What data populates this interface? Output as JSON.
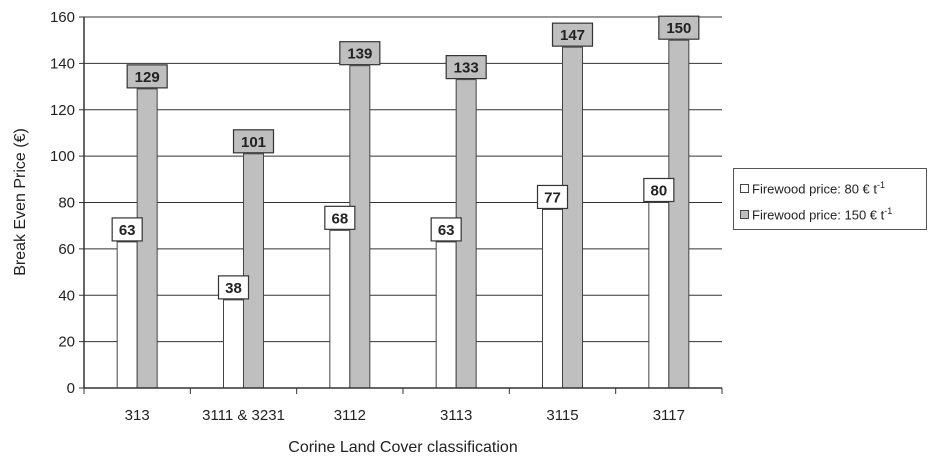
{
  "chart_data": {
    "type": "bar",
    "title": "",
    "xlabel": "Corine Land Cover classification",
    "ylabel": "Break Even Price (€)",
    "ylim": [
      0,
      160
    ],
    "yticks": [
      0,
      20,
      40,
      60,
      80,
      100,
      120,
      140,
      160
    ],
    "categories": [
      "313",
      "3111 & 3231",
      "3112",
      "3113",
      "3115",
      "3117"
    ],
    "series": [
      {
        "name": "Firewood price: 80 € t",
        "name_sup": "-1",
        "color": "#ffffff",
        "values": [
          63,
          38,
          68,
          63,
          77,
          80
        ]
      },
      {
        "name": "Firewood price: 150 € t",
        "name_sup": "-1",
        "color": "#bfbfbf",
        "values": [
          129,
          101,
          139,
          133,
          147,
          150
        ]
      }
    ],
    "grid": "horizontal",
    "legend_position": "right"
  }
}
